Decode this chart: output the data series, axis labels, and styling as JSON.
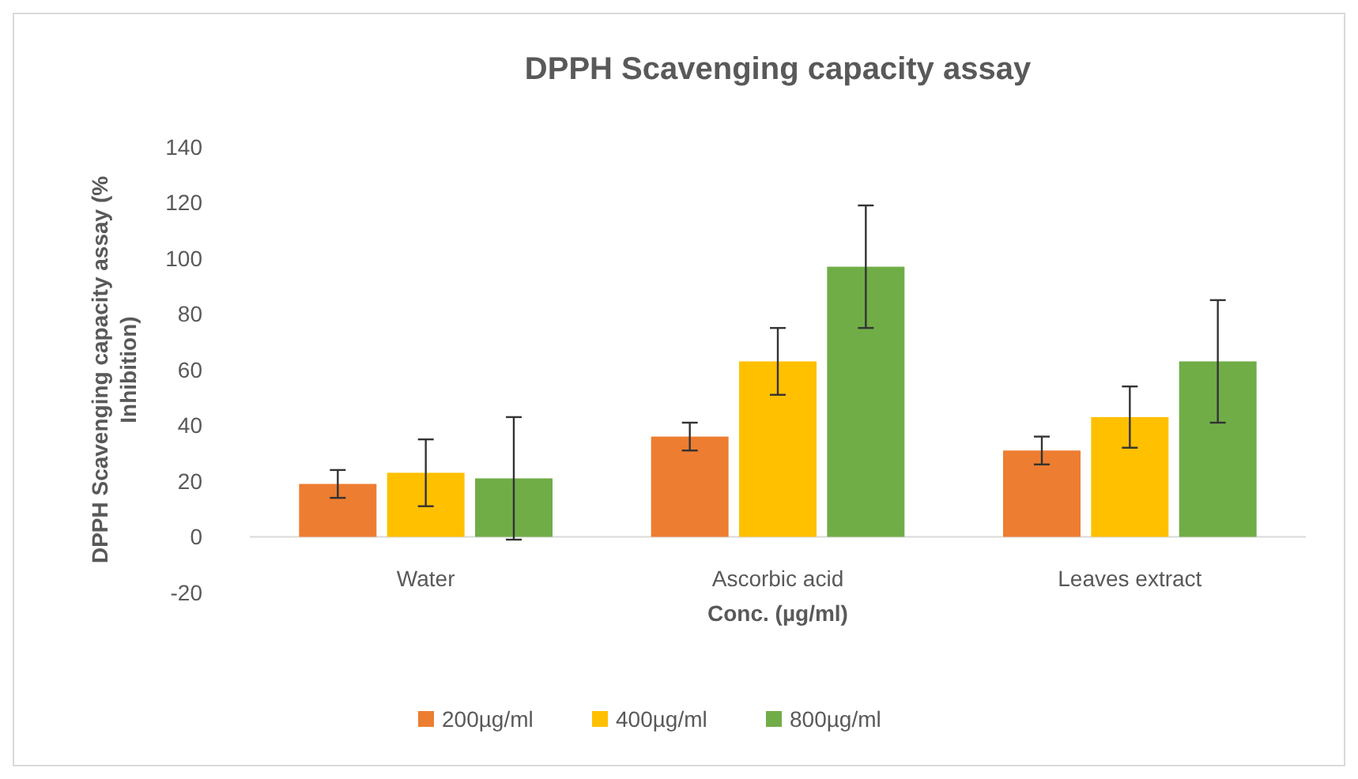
{
  "chart_data": {
    "type": "bar",
    "title": "DPPH Scavenging capacity assay",
    "xlabel": "Conc. (µg/ml)",
    "ylabel": "DPPH Scavenging capacity assay (% Inhibition)",
    "categories": [
      "Water",
      "Ascorbic acid",
      "Leaves extract"
    ],
    "series": [
      {
        "name": "200µg/ml",
        "color": "#ed7d31",
        "values": [
          19,
          36,
          31
        ],
        "errors": [
          5,
          5,
          5
        ]
      },
      {
        "name": "400µg/ml",
        "color": "#ffc000",
        "values": [
          23,
          63,
          43
        ],
        "errors": [
          12,
          12,
          11
        ]
      },
      {
        "name": "800µg/ml",
        "color": "#70ad47",
        "values": [
          21,
          97,
          63
        ],
        "errors": [
          22,
          22,
          22
        ]
      }
    ],
    "ylim": [
      -20,
      140
    ],
    "yticks": [
      -20,
      0,
      20,
      40,
      60,
      80,
      100,
      120,
      140
    ],
    "grid": false,
    "legend": "bottom"
  }
}
